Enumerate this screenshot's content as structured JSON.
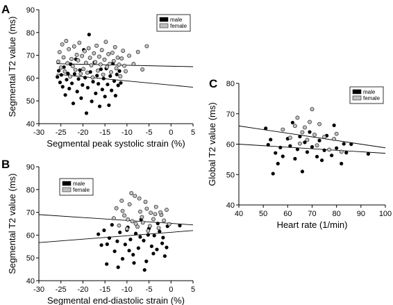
{
  "chart_data": [
    {
      "panel": "A",
      "type": "scatter",
      "xlabel": "Segmental peak systolic strain (%)",
      "ylabel": "Segmental T2 value (ms)",
      "xlim": [
        -30,
        5
      ],
      "ylim": [
        40,
        90
      ],
      "xticks": [
        -30,
        -25,
        -20,
        -15,
        -10,
        -5,
        0,
        5
      ],
      "yticks": [
        40,
        50,
        60,
        70,
        80,
        90
      ],
      "legend": {
        "position": "top-right",
        "entries": [
          "male",
          "female"
        ]
      },
      "series": [
        {
          "name": "male",
          "color": "#000000",
          "points": [
            [
              -25.8,
              60.5
            ],
            [
              -25.5,
              63.2
            ],
            [
              -25.2,
              58.1
            ],
            [
              -24.9,
              61.4
            ],
            [
              -24.6,
              56.2
            ],
            [
              -24.3,
              64.8
            ],
            [
              -24.0,
              52.6
            ],
            [
              -23.7,
              59.3
            ],
            [
              -23.4,
              62.0
            ],
            [
              -23.1,
              55.4
            ],
            [
              -22.8,
              66.1
            ],
            [
              -22.5,
              57.7
            ],
            [
              -22.2,
              48.9
            ],
            [
              -21.9,
              61.8
            ],
            [
              -21.6,
              68.3
            ],
            [
              -21.3,
              54.1
            ],
            [
              -21.0,
              59.6
            ],
            [
              -20.7,
              63.5
            ],
            [
              -20.4,
              51.2
            ],
            [
              -20.1,
              57.0
            ],
            [
              -19.8,
              72.4
            ],
            [
              -19.5,
              60.2
            ],
            [
              -19.2,
              44.6
            ],
            [
              -18.9,
              55.8
            ],
            [
              -18.6,
              79.1
            ],
            [
              -18.3,
              62.7
            ],
            [
              -18.0,
              49.8
            ],
            [
              -17.7,
              58.4
            ],
            [
              -17.4,
              66.9
            ],
            [
              -17.1,
              53.3
            ],
            [
              -16.8,
              61.1
            ],
            [
              -16.5,
              57.5
            ],
            [
              -16.2,
              47.6
            ],
            [
              -15.9,
              63.9
            ],
            [
              -15.6,
              55.0
            ],
            [
              -15.3,
              59.8
            ],
            [
              -15.0,
              51.9
            ],
            [
              -14.7,
              64.2
            ],
            [
              -14.4,
              57.2
            ],
            [
              -14.1,
              48.1
            ],
            [
              -13.8,
              60.9
            ],
            [
              -13.5,
              54.6
            ],
            [
              -13.2,
              66.4
            ],
            [
              -12.9,
              58.7
            ],
            [
              -12.6,
              52.3
            ],
            [
              -12.3,
              61.6
            ],
            [
              -12.0,
              56.8
            ],
            [
              -11.7,
              63.1
            ],
            [
              -11.4,
              57.9
            ]
          ]
        },
        {
          "name": "female",
          "color": "#c0c0c0",
          "points": [
            [
              -25.6,
              67.2
            ],
            [
              -25.3,
              71.4
            ],
            [
              -25.0,
              64.6
            ],
            [
              -24.7,
              74.8
            ],
            [
              -24.4,
              69.1
            ],
            [
              -24.1,
              62.9
            ],
            [
              -23.8,
              76.3
            ],
            [
              -23.5,
              66.5
            ],
            [
              -23.2,
              72.7
            ],
            [
              -22.9,
              60.7
            ],
            [
              -22.6,
              68.4
            ],
            [
              -22.3,
              65.2
            ],
            [
              -22.0,
              73.9
            ],
            [
              -21.7,
              63.6
            ],
            [
              -21.4,
              70.2
            ],
            [
              -21.1,
              67.8
            ],
            [
              -20.8,
              75.5
            ],
            [
              -20.5,
              61.9
            ],
            [
              -20.2,
              69.7
            ],
            [
              -19.9,
              64.0
            ],
            [
              -19.6,
              71.8
            ],
            [
              -19.3,
              66.7
            ],
            [
              -19.0,
              62.4
            ],
            [
              -18.7,
              73.1
            ],
            [
              -18.4,
              68.9
            ],
            [
              -18.1,
              65.6
            ],
            [
              -17.8,
              60.3
            ],
            [
              -17.5,
              70.9
            ],
            [
              -17.2,
              67.0
            ],
            [
              -16.9,
              74.2
            ],
            [
              -16.6,
              63.3
            ],
            [
              -16.3,
              69.4
            ],
            [
              -16.0,
              66.0
            ],
            [
              -15.7,
              72.3
            ],
            [
              -15.4,
              61.5
            ],
            [
              -15.1,
              68.1
            ],
            [
              -14.8,
              75.9
            ],
            [
              -14.5,
              64.9
            ],
            [
              -14.2,
              70.5
            ],
            [
              -13.9,
              66.3
            ],
            [
              -13.6,
              62.6
            ],
            [
              -13.3,
              71.1
            ],
            [
              -13.0,
              67.5
            ],
            [
              -12.7,
              73.6
            ],
            [
              -12.4,
              64.3
            ],
            [
              -12.1,
              69.0
            ],
            [
              -11.8,
              65.9
            ],
            [
              -11.5,
              60.8
            ],
            [
              -11.2,
              68.6
            ],
            [
              -10.9,
              72.0
            ],
            [
              -10.6,
              65.4
            ],
            [
              -10.3,
              63.0
            ],
            [
              -9.5,
              69.8
            ],
            [
              -8.5,
              66.2
            ],
            [
              -7.5,
              71.5
            ],
            [
              -6.5,
              63.8
            ],
            [
              -5.5,
              74.0
            ]
          ]
        }
      ],
      "regression_lines": [
        {
          "series": "female",
          "from": [
            -26,
            66.3
          ],
          "to": [
            5,
            65.0
          ]
        },
        {
          "series": "male",
          "from": [
            -26,
            61.7
          ],
          "to": [
            5,
            56.0
          ]
        }
      ]
    },
    {
      "panel": "B",
      "type": "scatter",
      "xlabel": "Segmental end-diastolic strain (%)",
      "ylabel": "Segmental T2 value (ms)",
      "xlim": [
        -30,
        5
      ],
      "ylim": [
        40,
        90
      ],
      "xticks": [
        -30,
        -25,
        -20,
        -15,
        -10,
        -5,
        0,
        5
      ],
      "yticks": [
        40,
        50,
        60,
        70,
        80,
        90
      ],
      "legend": {
        "position": "top-left",
        "entries": [
          "male",
          "female"
        ]
      },
      "series": [
        {
          "name": "male",
          "color": "#000000",
          "points": [
            [
              -16.5,
              60.4
            ],
            [
              -15.8,
              55.6
            ],
            [
              -15.2,
              62.1
            ],
            [
              -14.6,
              47.3
            ],
            [
              -14.0,
              58.7
            ],
            [
              -13.4,
              64.5
            ],
            [
              -12.8,
              52.9
            ],
            [
              -12.2,
              57.3
            ],
            [
              -11.6,
              61.2
            ],
            [
              -11.0,
              49.6
            ],
            [
              -10.4,
              55.9
            ],
            [
              -9.8,
              63.4
            ],
            [
              -9.2,
              58.1
            ],
            [
              -8.6,
              51.4
            ],
            [
              -8.0,
              60.7
            ],
            [
              -7.4,
              54.3
            ],
            [
              -6.8,
              66.8
            ],
            [
              -6.2,
              57.6
            ],
            [
              -5.6,
              48.5
            ],
            [
              -5.0,
              62.9
            ],
            [
              -4.4,
              55.1
            ],
            [
              -3.8,
              59.8
            ],
            [
              -3.2,
              53.7
            ],
            [
              -2.6,
              61.6
            ],
            [
              -2.0,
              56.4
            ],
            [
              -1.4,
              50.8
            ],
            [
              -0.8,
              63.9
            ],
            [
              -12.0,
              45.9
            ],
            [
              -8.4,
              47.8
            ],
            [
              -6.0,
              44.7
            ],
            [
              -4.0,
              51.9
            ],
            [
              -1.8,
              58.9
            ],
            [
              2.0,
              64.2
            ],
            [
              -10.0,
              62.2
            ],
            [
              -7.0,
              59.2
            ],
            [
              -3.0,
              65.1
            ],
            [
              -14.5,
              56.0
            ],
            [
              -9.5,
              53.2
            ],
            [
              -5.2,
              60.1
            ],
            [
              -1.0,
              54.6
            ]
          ]
        },
        {
          "name": "female",
          "color": "#c0c0c0",
          "points": [
            [
              -13.0,
              67.4
            ],
            [
              -12.4,
              71.8
            ],
            [
              -11.8,
              64.2
            ],
            [
              -11.2,
              75.1
            ],
            [
              -10.6,
              68.6
            ],
            [
              -10.0,
              62.8
            ],
            [
              -9.4,
              73.5
            ],
            [
              -8.8,
              66.1
            ],
            [
              -8.2,
              77.2
            ],
            [
              -7.6,
              63.7
            ],
            [
              -7.0,
              70.3
            ],
            [
              -6.4,
              65.5
            ],
            [
              -5.8,
              74.6
            ],
            [
              -5.2,
              61.9
            ],
            [
              -4.6,
              69.8
            ],
            [
              -4.0,
              67.0
            ],
            [
              -3.4,
              72.4
            ],
            [
              -2.8,
              63.1
            ],
            [
              -2.2,
              68.9
            ],
            [
              -1.6,
              66.4
            ],
            [
              -1.0,
              71.1
            ],
            [
              -0.4,
              64.8
            ],
            [
              -9.0,
              78.4
            ],
            [
              -7.2,
              76.1
            ],
            [
              -5.5,
              71.6
            ],
            [
              -3.6,
              69.2
            ],
            [
              -8.0,
              65.0
            ],
            [
              -6.6,
              67.9
            ],
            [
              -4.8,
              64.0
            ],
            [
              -2.4,
              70.0
            ],
            [
              -11.0,
              70.6
            ],
            [
              -9.8,
              66.9
            ]
          ]
        }
      ],
      "regression_lines": [
        {
          "series": "female",
          "from": [
            -30,
            69.0
          ],
          "to": [
            5,
            64.5
          ]
        },
        {
          "series": "male",
          "from": [
            -30,
            56.7
          ],
          "to": [
            5,
            62.0
          ]
        }
      ]
    },
    {
      "panel": "C",
      "type": "scatter",
      "xlabel": "Heart rate (1/min)",
      "ylabel": "Global T2 value (ms)",
      "xlim": [
        40,
        100
      ],
      "ylim": [
        40,
        80
      ],
      "xticks": [
        40,
        50,
        60,
        70,
        80,
        90,
        100
      ],
      "yticks": [
        40,
        50,
        60,
        70,
        80
      ],
      "legend": {
        "position": "top-right",
        "entries": [
          "male",
          "female"
        ]
      },
      "series": [
        {
          "name": "male",
          "color": "#000000",
          "points": [
            [
              51,
              65.2
            ],
            [
              52,
              59.8
            ],
            [
              53,
              61.5
            ],
            [
              54,
              50.3
            ],
            [
              55,
              57.1
            ],
            [
              56,
              53.6
            ],
            [
              57,
              58.9
            ],
            [
              58,
              56.0
            ],
            [
              60,
              61.8
            ],
            [
              61,
              59.4
            ],
            [
              62,
              67.1
            ],
            [
              63,
              55.2
            ],
            [
              64,
              58.3
            ],
            [
              65,
              62.5
            ],
            [
              66,
              51.0
            ],
            [
              67,
              60.6
            ],
            [
              68,
              57.4
            ],
            [
              69,
              64.0
            ],
            [
              70,
              59.1
            ],
            [
              72,
              55.9
            ],
            [
              73,
              61.2
            ],
            [
              74,
              54.7
            ],
            [
              75,
              58.0
            ],
            [
              76,
              62.8
            ],
            [
              78,
              56.3
            ],
            [
              79,
              66.2
            ],
            [
              80,
              58.7
            ],
            [
              82,
              53.6
            ],
            [
              83,
              60.1
            ],
            [
              84,
              57.2
            ],
            [
              86,
              60.0
            ],
            [
              93,
              56.8
            ]
          ]
        },
        {
          "name": "female",
          "color": "#c0c0c0",
          "points": [
            [
              58,
              64.8
            ],
            [
              61,
              62.1
            ],
            [
              63,
              66.0
            ],
            [
              64,
              68.7
            ],
            [
              65,
              60.2
            ],
            [
              66,
              63.9
            ],
            [
              67,
              65.5
            ],
            [
              68,
              61.4
            ],
            [
              69,
              67.3
            ],
            [
              70,
              71.5
            ],
            [
              71,
              63.1
            ],
            [
              72,
              59.6
            ],
            [
              73,
              66.6
            ],
            [
              75,
              62.4
            ],
            [
              77,
              58.2
            ],
            [
              79,
              61.7
            ],
            [
              80,
              63.4
            ],
            [
              82,
              57.5
            ]
          ]
        }
      ],
      "regression_lines": [
        {
          "series": "female",
          "from": [
            40,
            66.0
          ],
          "to": [
            100,
            58.8
          ]
        },
        {
          "series": "male",
          "from": [
            40,
            60.0
          ],
          "to": [
            100,
            57.0
          ]
        }
      ]
    }
  ]
}
